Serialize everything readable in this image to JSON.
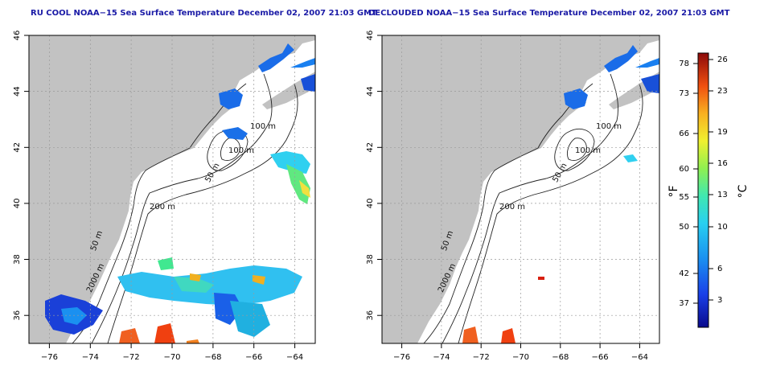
{
  "left_panel": {
    "title": "RU COOL NOAA−15 Sea Surface Temperature December 02, 2007 21:03 GMT"
  },
  "right_panel": {
    "title": "DECLOUDED NOAA−15 Sea Surface Temperature December 02, 2007 21:03 GMT"
  },
  "axes": {
    "x_ticks": [
      -76,
      -74,
      -72,
      -70,
      -68,
      -66,
      -64
    ],
    "y_ticks": [
      36,
      38,
      40,
      42,
      44,
      46
    ],
    "x_tick_labels": [
      "−76",
      "−74",
      "−72",
      "−70",
      "−68",
      "−66",
      "−64"
    ],
    "y_tick_labels": [
      "36",
      "38",
      "40",
      "42",
      "44",
      "46"
    ],
    "lon_range": [
      -77,
      -63
    ],
    "lat_range": [
      35,
      46
    ]
  },
  "contours": {
    "labels": [
      "100 m",
      "100 m",
      "50 m",
      "200 m",
      "50 m",
      "2000 m"
    ]
  },
  "colorbar": {
    "fahrenheit_label": "°F",
    "celsius_label": "°C",
    "fahrenheit_ticks": [
      "78",
      "73",
      "66",
      "60",
      "55",
      "50",
      "42",
      "37"
    ],
    "celsius_ticks": [
      "26",
      "23",
      "19",
      "16",
      "13",
      "10",
      "6",
      "3"
    ],
    "colors": [
      "#0a0a8c",
      "#1030d8",
      "#1a6cf0",
      "#20b0f0",
      "#30e0e0",
      "#40e8a0",
      "#90f050",
      "#f0f030",
      "#f8b020",
      "#f06010",
      "#d82010",
      "#8c0a0a"
    ],
    "land_color": "#c2c2c2",
    "title_color": "#1a1aa6"
  }
}
